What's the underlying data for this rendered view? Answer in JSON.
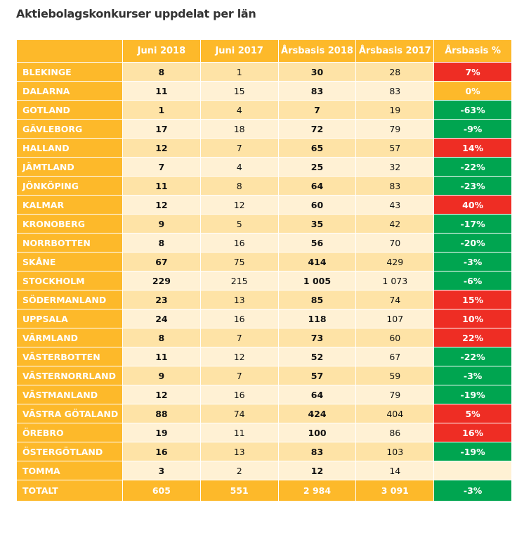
{
  "title": "Aktiebolagskonkurser uppdelat per län",
  "chart_data": {
    "type": "table",
    "title": "Aktiebolagskonkurser uppdelat per län",
    "columns": [
      "",
      "Juni 2018",
      "Juni 2017",
      "Årsbasis 2018",
      "Årsbasis 2017",
      "Årsbasis %"
    ],
    "rows": [
      [
        "BLEKINGE",
        "8",
        "1",
        "30",
        "28",
        "7%"
      ],
      [
        "DALARNA",
        "11",
        "15",
        "83",
        "83",
        "0%"
      ],
      [
        "GOTLAND",
        "1",
        "4",
        "7",
        "19",
        "-63%"
      ],
      [
        "GÄVLEBORG",
        "17",
        "18",
        "72",
        "79",
        "-9%"
      ],
      [
        "HALLAND",
        "12",
        "7",
        "65",
        "57",
        "14%"
      ],
      [
        "JÄMTLAND",
        "7",
        "4",
        "25",
        "32",
        "-22%"
      ],
      [
        "JÖNKÖPING",
        "11",
        "8",
        "64",
        "83",
        "-23%"
      ],
      [
        "KALMAR",
        "12",
        "12",
        "60",
        "43",
        "40%"
      ],
      [
        "KRONOBERG",
        "9",
        "5",
        "35",
        "42",
        "-17%"
      ],
      [
        "NORRBOTTEN",
        "8",
        "16",
        "56",
        "70",
        "-20%"
      ],
      [
        "SKÅNE",
        "67",
        "75",
        "414",
        "429",
        "-3%"
      ],
      [
        "STOCKHOLM",
        "229",
        "215",
        "1 005",
        "1 073",
        "-6%"
      ],
      [
        "SÖDERMANLAND",
        "23",
        "13",
        "85",
        "74",
        "15%"
      ],
      [
        "UPPSALA",
        "24",
        "16",
        "118",
        "107",
        "10%"
      ],
      [
        "VÄRMLAND",
        "8",
        "7",
        "73",
        "60",
        "22%"
      ],
      [
        "VÄSTERBOTTEN",
        "11",
        "12",
        "52",
        "67",
        "-22%"
      ],
      [
        "VÄSTERNORRLAND",
        "9",
        "7",
        "57",
        "59",
        "-3%"
      ],
      [
        "VÄSTMANLAND",
        "12",
        "16",
        "64",
        "79",
        "-19%"
      ],
      [
        "VÄSTRA GÖTALAND",
        "88",
        "74",
        "424",
        "404",
        "5%"
      ],
      [
        "ÖREBRO",
        "19",
        "11",
        "100",
        "86",
        "16%"
      ],
      [
        "ÖSTERGÖTLAND",
        "16",
        "13",
        "83",
        "103",
        "-19%"
      ],
      [
        "TOMMA",
        "3",
        "2",
        "12",
        "14",
        ""
      ]
    ],
    "total": [
      "TOTALT",
      "605",
      "551",
      "2 984",
      "3 091",
      "-3%"
    ],
    "colors": {
      "header": "#FDB92A",
      "increase": "#EE2D24",
      "decrease": "#00A550",
      "unchanged": "#FDB92A"
    }
  }
}
